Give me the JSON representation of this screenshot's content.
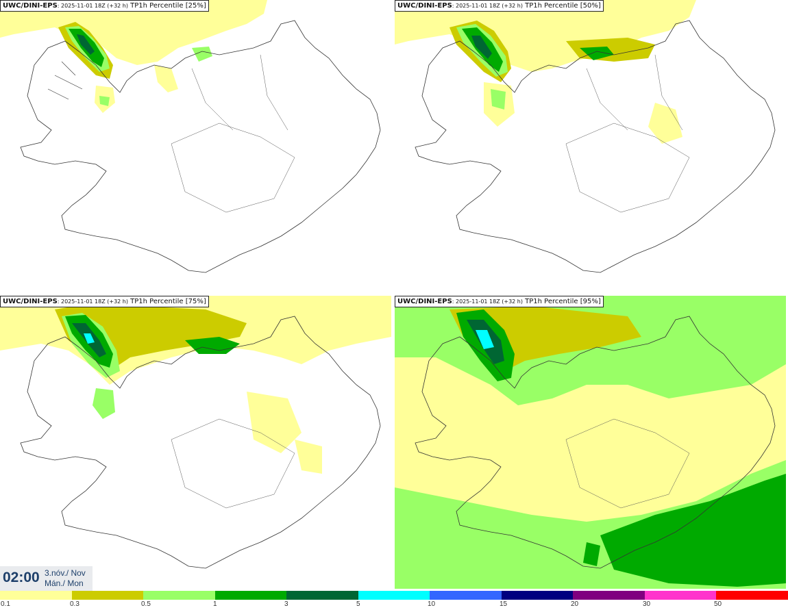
{
  "panels": [
    {
      "model": "UWC/DINI-EPS",
      "run": ": 2025-11-01 18Z (+32 h)",
      "field": " TP1h Percentile [25%]"
    },
    {
      "model": "UWC/DINI-EPS",
      "run": ": 2025-11-01 18Z (+32 h)",
      "field": " TP1h Percentile [50%]"
    },
    {
      "model": "UWC/DINI-EPS",
      "run": ": 2025-11-01 18Z (+32 h)",
      "field": " TP1h Percentile [75%]"
    },
    {
      "model": "UWC/DINI-EPS",
      "run": ": 2025-11-01 18Z (+32 h)",
      "field": " TP1h Percentile [95%]"
    }
  ],
  "valid_time": {
    "time": "02:00",
    "date_line1": "3.nóv./ Nov",
    "date_line2": "Mán./ Mon"
  },
  "legend": {
    "colors": [
      "#ffff99",
      "#cccc00",
      "#99ff66",
      "#00aa00",
      "#006633",
      "#00ffff",
      "#3366ff",
      "#000080",
      "#800080",
      "#ff33cc",
      "#ff0000"
    ],
    "labels": [
      "0.1",
      "0.3",
      "0.5",
      "1",
      "3",
      "5",
      "10",
      "15",
      "20",
      "30",
      "50"
    ]
  }
}
